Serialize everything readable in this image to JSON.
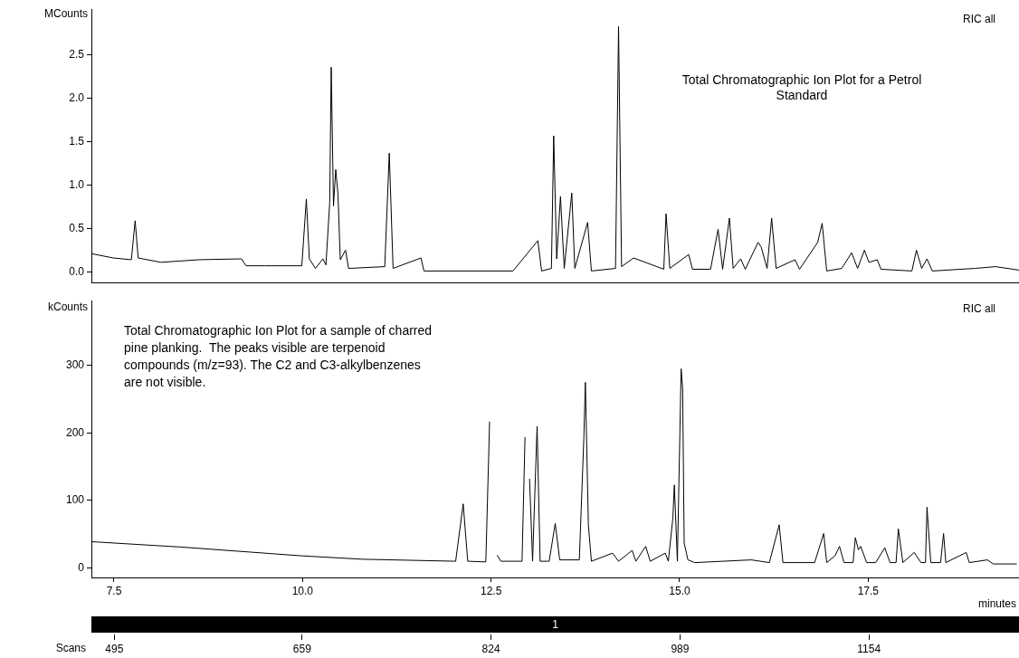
{
  "chart_data": [
    {
      "type": "line",
      "ylabel": "MCounts",
      "xlim": [
        7.2,
        19.5
      ],
      "ylim": [
        -0.13,
        3.03
      ],
      "yticks": [
        {
          "value": 0,
          "label": "0.0"
        },
        {
          "value": 0.5,
          "label": "0.5"
        },
        {
          "value": 1,
          "label": "1.0"
        },
        {
          "value": 1.5,
          "label": "1.5"
        },
        {
          "value": 2,
          "label": "2.0"
        },
        {
          "value": 2.5,
          "label": "2.5"
        }
      ],
      "tick_labels": "y",
      "grid": false,
      "legend": false,
      "marker": "none",
      "line_style": "solid",
      "annotations": [
        "RIC all",
        "Total Chromatographic Ion Plot for a Petrol Standard"
      ],
      "x": [
        7.2,
        7.49,
        7.73,
        7.78,
        7.82,
        8.12,
        8.63,
        9.19,
        9.25,
        9.5,
        9.99,
        10.05,
        10.09,
        10.17,
        10.27,
        10.31,
        10.36,
        10.38,
        10.41,
        10.44,
        10.47,
        10.5,
        10.57,
        10.61,
        11.09,
        11.15,
        11.2,
        11.57,
        11.61,
        12.79,
        13.12,
        13.17,
        13.3,
        13.33,
        13.37,
        13.42,
        13.47,
        13.57,
        13.61,
        13.78,
        13.83,
        14.15,
        14.19,
        14.23,
        14.39,
        14.79,
        14.82,
        14.87,
        15.12,
        15.17,
        15.41,
        15.51,
        15.57,
        15.66,
        15.71,
        15.81,
        15.87,
        16.04,
        16.08,
        16.16,
        16.22,
        16.28,
        16.53,
        16.59,
        16.83,
        16.89,
        16.95,
        17.15,
        17.28,
        17.36,
        17.45,
        17.51,
        17.62,
        17.67,
        18.08,
        18.14,
        18.21,
        18.28,
        18.35,
        18.92,
        19.19,
        19.5
      ],
      "series": [
        {
          "color": "#000000",
          "values": [
            0.21,
            0.16,
            0.14,
            0.59,
            0.16,
            0.11,
            0.14,
            0.15,
            0.07,
            0.07,
            0.07,
            0.84,
            0.15,
            0.04,
            0.15,
            0.08,
            0.8,
            2.36,
            0.76,
            1.18,
            0.89,
            0.14,
            0.25,
            0.04,
            0.06,
            1.37,
            0.04,
            0.16,
            0.01,
            0.01,
            0.36,
            0.01,
            0.04,
            1.57,
            0.15,
            0.87,
            0.04,
            0.91,
            0.04,
            0.57,
            0.01,
            0.04,
            2.83,
            0.06,
            0.16,
            0.03,
            0.67,
            0.04,
            0.2,
            0.03,
            0.03,
            0.49,
            0.03,
            0.62,
            0.04,
            0.15,
            0.03,
            0.34,
            0.29,
            0.04,
            0.62,
            0.04,
            0.14,
            0.03,
            0.34,
            0.56,
            0.01,
            0.04,
            0.22,
            0.04,
            0.25,
            0.11,
            0.14,
            0.03,
            0.01,
            0.25,
            0.04,
            0.15,
            0.01,
            0.04,
            0.06,
            0.02
          ]
        }
      ]
    },
    {
      "type": "line",
      "ylabel": "kCounts",
      "xlabel": "minutes",
      "x2label": "Scans",
      "xlim": [
        7.2,
        19.5
      ],
      "ylim": [
        -14,
        396
      ],
      "xticks": [
        {
          "value": 7.5,
          "label": "7.5"
        },
        {
          "value": 10,
          "label": "10.0"
        },
        {
          "value": 12.5,
          "label": "12.5"
        },
        {
          "value": 15,
          "label": "15.0"
        },
        {
          "value": 17.5,
          "label": "17.5"
        }
      ],
      "x2lim": [
        475,
        1285
      ],
      "x2ticks": [
        495,
        659,
        824,
        989,
        1154
      ],
      "yticks": [
        0,
        100,
        200,
        300
      ],
      "grid": false,
      "legend": false,
      "marker": "none",
      "line_style": "solid",
      "annotations": [
        "RIC all",
        "Total Chromatographic Ion Plot for a sample of charred pine planking.  The peaks visible are terpenoid compounds (m/z=93). The C2 and C3-alkylbenzenes are not visible.",
        "1"
      ],
      "x": [
        7.2,
        8.39,
        9.99,
        10.79,
        12.03,
        12.13,
        12.19,
        12.43,
        12.48,
        12.5,
        12.55,
        12.58,
        12.63,
        12.91,
        12.95,
        12.99,
        13.01,
        13.05,
        13.11,
        13.15,
        13.27,
        13.35,
        13.41,
        13.67,
        13.73,
        13.75,
        13.79,
        13.83,
        14.11,
        14.19,
        14.37,
        14.42,
        14.55,
        14.61,
        14.81,
        14.85,
        14.91,
        14.93,
        14.97,
        15.02,
        15.04,
        15.06,
        15.11,
        15.2,
        15.95,
        16.19,
        16.32,
        16.37,
        16.79,
        16.91,
        16.95,
        17.06,
        17.12,
        17.18,
        17.3,
        17.33,
        17.37,
        17.4,
        17.48,
        17.6,
        17.72,
        17.79,
        17.87,
        17.9,
        17.96,
        18.11,
        18.2,
        18.26,
        18.28,
        18.33,
        18.46,
        18.5,
        18.53,
        18.8,
        18.84,
        19.08,
        19.16,
        19.47
      ],
      "series": [
        {
          "color": "#000000",
          "values": [
            39,
            31,
            18,
            13,
            10,
            95,
            10,
            9,
            217,
            null,
            null,
            19,
            10,
            10,
            194,
            null,
            132,
            10,
            210,
            10,
            10,
            66,
            12,
            12,
            193,
            275,
            64,
            10,
            22,
            10,
            26,
            10,
            32,
            10,
            22,
            10,
            74,
            123,
            10,
            295,
            266,
            37,
            12,
            8,
            12,
            8,
            64,
            8,
            8,
            51,
            8,
            18,
            32,
            8,
            8,
            45,
            27,
            32,
            8,
            8,
            30,
            8,
            8,
            58,
            8,
            23,
            8,
            8,
            90,
            8,
            8,
            51,
            8,
            23,
            8,
            12,
            6,
            6
          ]
        }
      ]
    }
  ]
}
